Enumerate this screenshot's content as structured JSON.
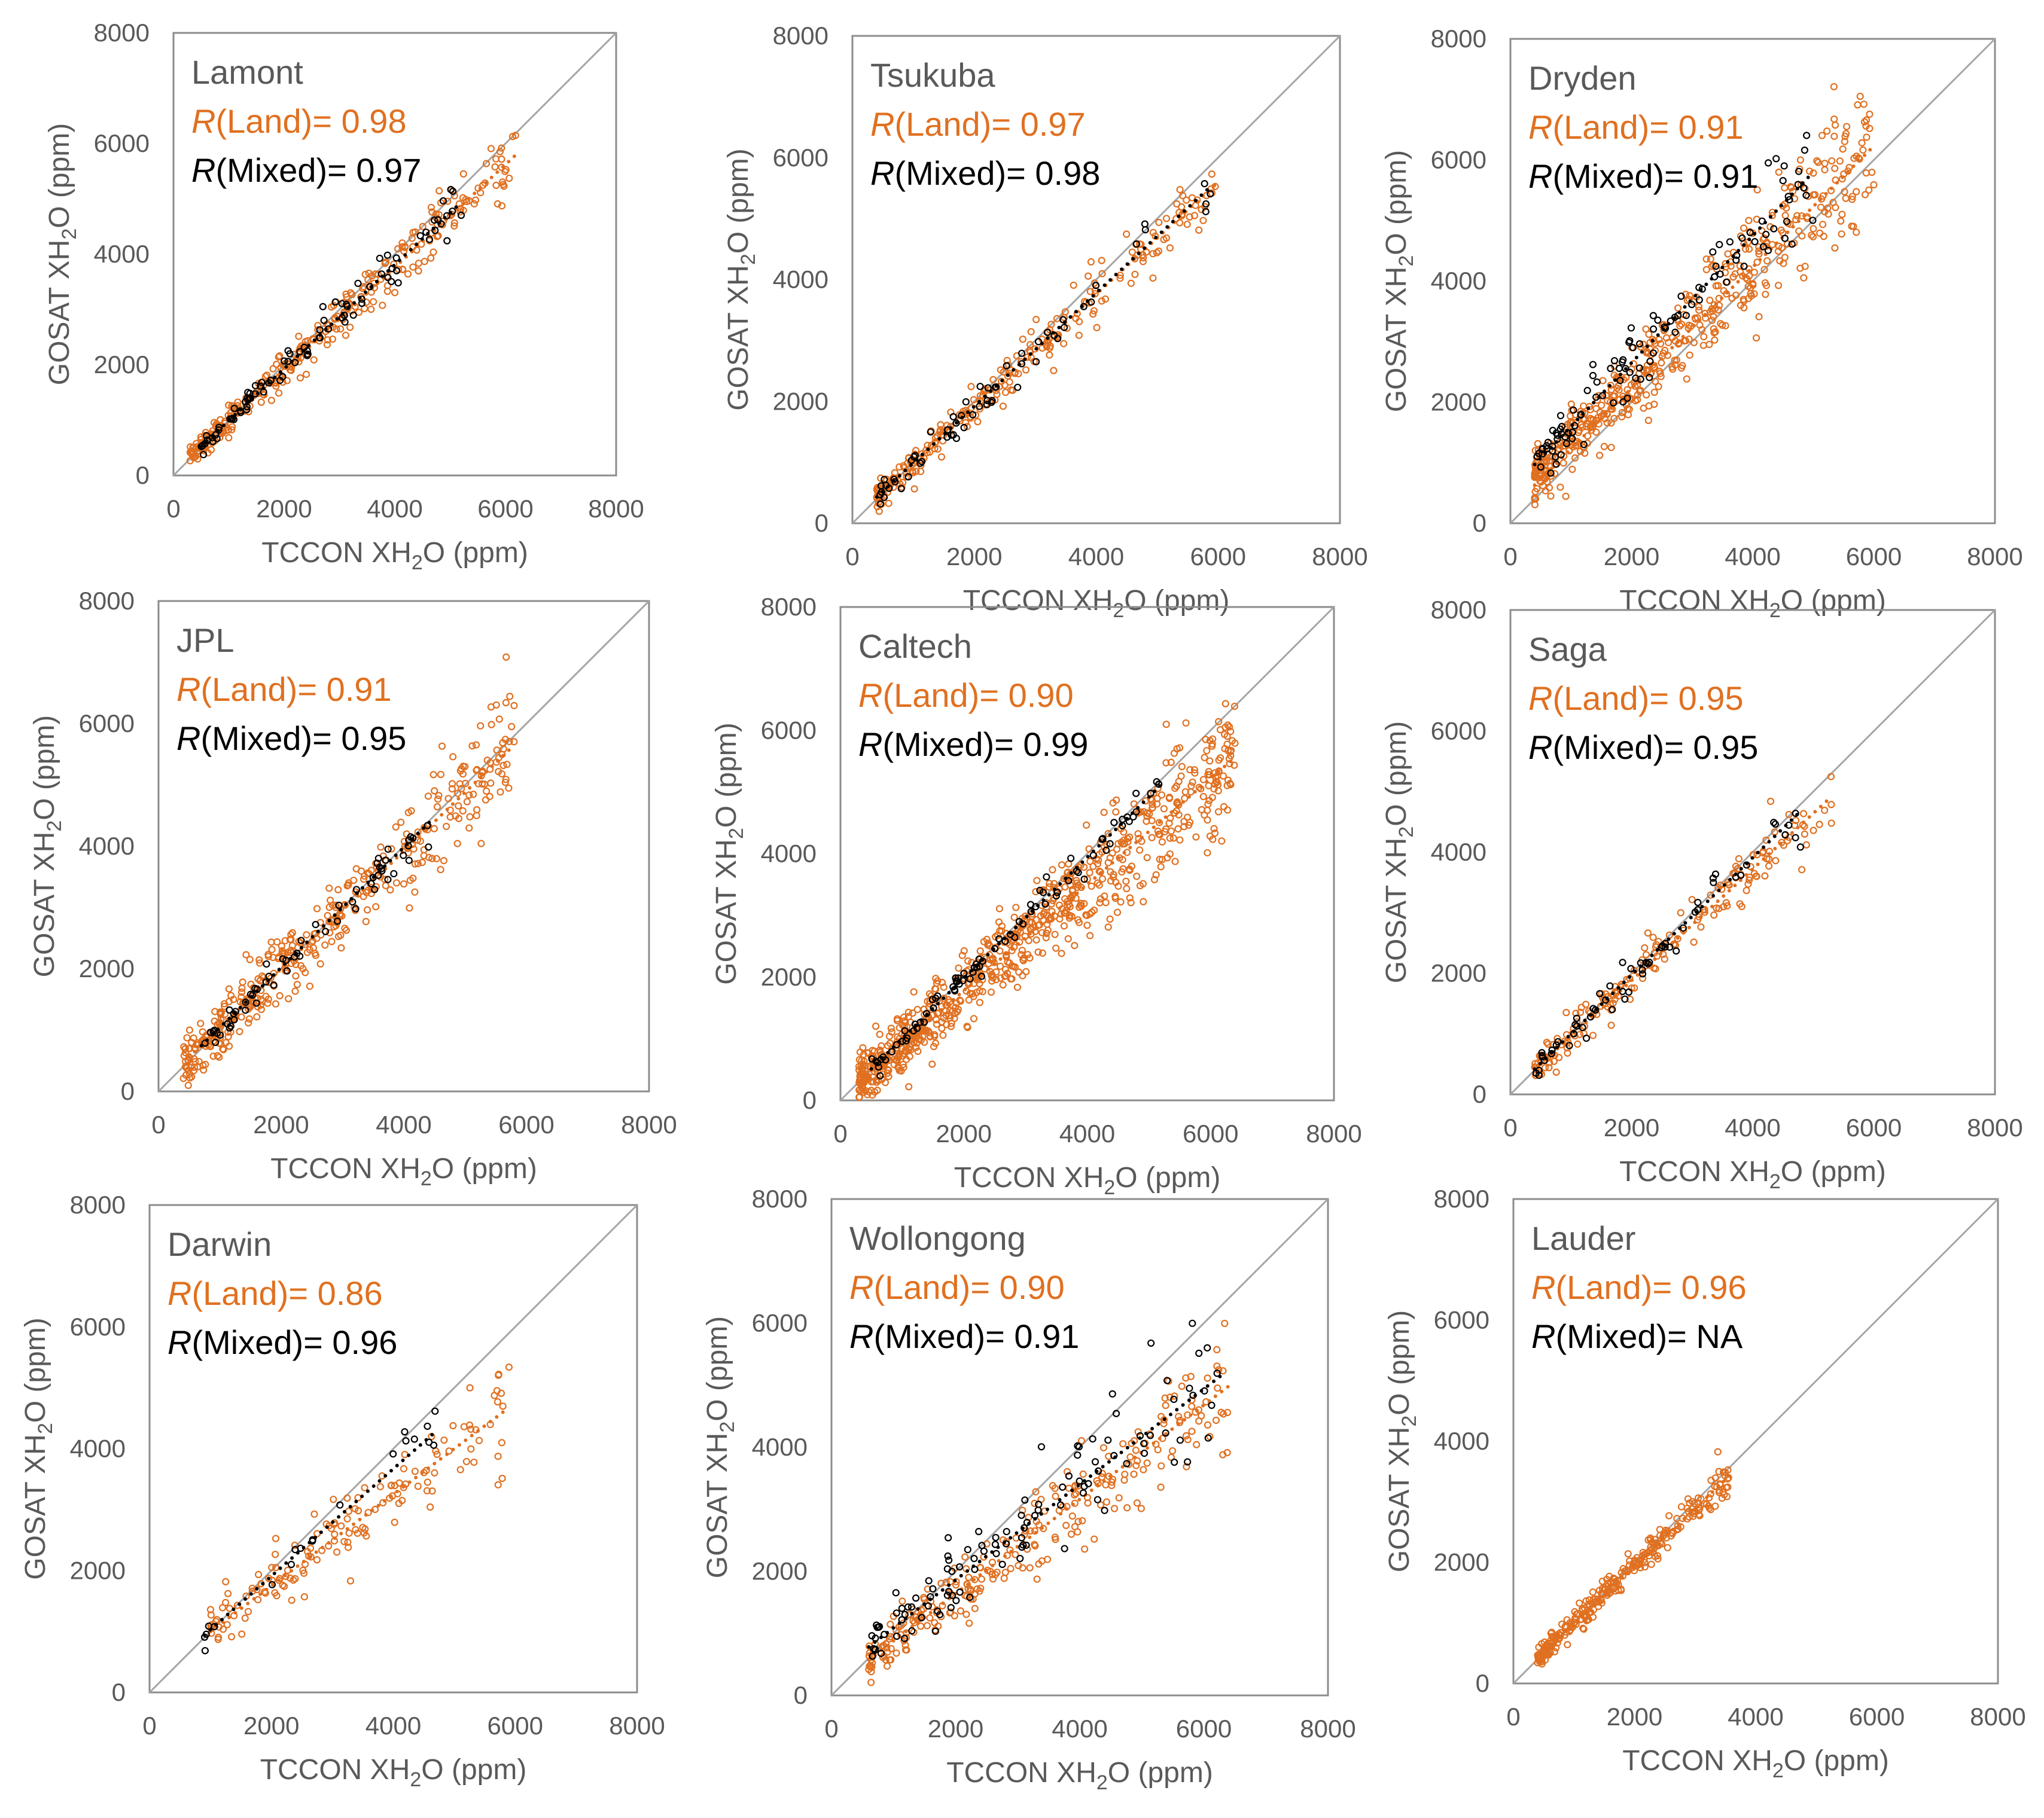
{
  "figure": {
    "colors": {
      "land": "#E07020",
      "mixed": "#000000",
      "axis": "#8C8C8C",
      "one_to_one": "#A6A6A6",
      "text": "#595959"
    },
    "legend_terms": {
      "r_symbol": "R",
      "land": "(Land)= ",
      "mixed": "(Mixed)= "
    }
  },
  "chart_data": [
    {
      "type": "scatter",
      "site": "Lamont",
      "xlabel": "TCCON XH2O (ppm)",
      "ylabel": "GOSAT XH2O (ppm)",
      "xlim": [
        0,
        8000
      ],
      "ylim": [
        0,
        8000
      ],
      "xticks": [
        "0",
        "2000",
        "4000",
        "6000",
        "8000"
      ],
      "yticks": [
        "0",
        "2000",
        "4000",
        "6000",
        "8000"
      ],
      "r_land": "0.98",
      "r_mixed": "0.97",
      "series": [
        {
          "name": "Land",
          "x_range": [
            300,
            6200
          ],
          "slope": 0.93,
          "intercept": 60,
          "scatter": 200,
          "n": 300,
          "fit": {
            "x0": 500,
            "x1": 6200,
            "slope": 0.93,
            "intercept": 40
          }
        },
        {
          "name": "Mixed",
          "x_range": [
            500,
            5200
          ],
          "slope": 0.94,
          "intercept": 60,
          "scatter": 160,
          "n": 90,
          "fit": {
            "x0": 500,
            "x1": 5200,
            "slope": 0.94,
            "intercept": 50
          }
        }
      ]
    },
    {
      "type": "scatter",
      "site": "Tsukuba",
      "xlabel": "TCCON XH2O (ppm)",
      "ylabel": "GOSAT XH2O (ppm)",
      "xlim": [
        0,
        8000
      ],
      "ylim": [
        0,
        8000
      ],
      "xticks": [
        "0",
        "2000",
        "4000",
        "6000",
        "8000"
      ],
      "yticks": [
        "0",
        "2000",
        "4000",
        "6000",
        "8000"
      ],
      "r_land": "0.97",
      "r_mixed": "0.98",
      "series": [
        {
          "name": "Land",
          "x_range": [
            400,
            6000
          ],
          "slope": 0.92,
          "intercept": 80,
          "scatter": 220,
          "n": 260,
          "fit": {
            "x0": 400,
            "x1": 6000,
            "slope": 0.92,
            "intercept": 80
          }
        },
        {
          "name": "Mixed",
          "x_range": [
            400,
            5900
          ],
          "slope": 0.93,
          "intercept": 60,
          "scatter": 180,
          "n": 60,
          "fit": {
            "x0": 400,
            "x1": 5900,
            "slope": 0.93,
            "intercept": 60
          }
        }
      ]
    },
    {
      "type": "scatter",
      "site": "Dryden",
      "xlabel": "TCCON XH2O (ppm)",
      "ylabel": "GOSAT XH2O (ppm)",
      "xlim": [
        0,
        8000
      ],
      "ylim": [
        0,
        8000
      ],
      "xticks": [
        "0",
        "2000",
        "4000",
        "6000",
        "8000"
      ],
      "yticks": [
        "0",
        "2000",
        "4000",
        "6000",
        "8000"
      ],
      "r_land": "0.91",
      "r_mixed": "0.91",
      "series": [
        {
          "name": "Land",
          "x_range": [
            400,
            6000
          ],
          "slope": 0.98,
          "intercept": 350,
          "scatter": 380,
          "n": 520,
          "fit": {
            "x0": 400,
            "x1": 6000,
            "slope": 1.0,
            "intercept": 230
          }
        },
        {
          "name": "Mixed",
          "x_range": [
            400,
            5000
          ],
          "slope": 1.05,
          "intercept": 550,
          "scatter": 380,
          "n": 110,
          "fit": {
            "x0": 400,
            "x1": 5000,
            "slope": 1.05,
            "intercept": 550
          }
        }
      ]
    },
    {
      "type": "scatter",
      "site": "JPL",
      "xlabel": "TCCON XH2O (ppm)",
      "ylabel": "GOSAT XH2O (ppm)",
      "xlim": [
        0,
        8000
      ],
      "ylim": [
        0,
        8000
      ],
      "xticks": [
        "0",
        "2000",
        "4000",
        "6000",
        "8000"
      ],
      "yticks": [
        "0",
        "2000",
        "4000",
        "6000",
        "8000"
      ],
      "r_land": "0.91",
      "r_mixed": "0.95",
      "series": [
        {
          "name": "Land",
          "x_range": [
            400,
            5800
          ],
          "slope": 0.96,
          "intercept": 80,
          "scatter": 330,
          "n": 400,
          "fit": {
            "x0": 500,
            "x1": 5800,
            "slope": 0.96,
            "intercept": 80
          }
        },
        {
          "name": "Mixed",
          "x_range": [
            700,
            4500
          ],
          "slope": 0.98,
          "intercept": 60,
          "scatter": 150,
          "n": 60,
          "fit": {
            "x0": 700,
            "x1": 4500,
            "slope": 0.98,
            "intercept": 60
          }
        }
      ]
    },
    {
      "type": "scatter",
      "site": "Caltech",
      "xlabel": "TCCON XH2O (ppm)",
      "ylabel": "GOSAT XH2O (ppm)",
      "xlim": [
        0,
        8000
      ],
      "ylim": [
        0,
        8000
      ],
      "xticks": [
        "0",
        "2000",
        "4000",
        "6000",
        "8000"
      ],
      "yticks": [
        "0",
        "2000",
        "4000",
        "6000",
        "8000"
      ],
      "r_land": "0.90",
      "r_mixed": "0.99",
      "series": [
        {
          "name": "Land",
          "x_range": [
            300,
            6400
          ],
          "slope": 0.86,
          "intercept": 60,
          "scatter": 360,
          "n": 750,
          "fit": {
            "x0": 300,
            "x1": 6400,
            "slope": 0.86,
            "intercept": 60
          }
        },
        {
          "name": "Mixed",
          "x_range": [
            500,
            5200
          ],
          "slope": 0.98,
          "intercept": 20,
          "scatter": 110,
          "n": 80,
          "fit": {
            "x0": 500,
            "x1": 5200,
            "slope": 0.98,
            "intercept": 20
          }
        }
      ]
    },
    {
      "type": "scatter",
      "site": "Saga",
      "xlabel": "TCCON XH2O (ppm)",
      "ylabel": "GOSAT XH2O (ppm)",
      "xlim": [
        0,
        8000
      ],
      "ylim": [
        0,
        8000
      ],
      "xticks": [
        "0",
        "2000",
        "4000",
        "6000",
        "8000"
      ],
      "yticks": [
        "0",
        "2000",
        "4000",
        "6000",
        "8000"
      ],
      "r_land": "0.95",
      "r_mixed": "0.95",
      "series": [
        {
          "name": "Land",
          "x_range": [
            400,
            5300
          ],
          "slope": 0.92,
          "intercept": 50,
          "scatter": 220,
          "n": 180,
          "fit": {
            "x0": 400,
            "x1": 5300,
            "slope": 0.92,
            "intercept": 40
          }
        },
        {
          "name": "Mixed",
          "x_range": [
            400,
            4800
          ],
          "slope": 0.97,
          "intercept": 40,
          "scatter": 220,
          "n": 60,
          "fit": {
            "x0": 400,
            "x1": 4800,
            "slope": 0.97,
            "intercept": 30
          }
        }
      ]
    },
    {
      "type": "scatter",
      "site": "Darwin",
      "xlabel": "TCCON XH2O (ppm)",
      "ylabel": "GOSAT XH2O (ppm)",
      "xlim": [
        0,
        8000
      ],
      "ylim": [
        0,
        8000
      ],
      "xticks": [
        "0",
        "2000",
        "4000",
        "6000",
        "8000"
      ],
      "yticks": [
        "0",
        "2000",
        "4000",
        "6000",
        "8000"
      ],
      "r_land": "0.86",
      "r_mixed": "0.96",
      "series": [
        {
          "name": "Land",
          "x_range": [
            1000,
            5900
          ],
          "slope": 0.75,
          "intercept": 250,
          "scatter": 320,
          "n": 150,
          "fit": {
            "x0": 1000,
            "x1": 5900,
            "slope": 0.75,
            "intercept": 250
          }
        },
        {
          "name": "Mixed",
          "x_range": [
            900,
            4700
          ],
          "slope": 0.88,
          "intercept": 150,
          "scatter": 160,
          "n": 20,
          "fit": {
            "x0": 900,
            "x1": 4700,
            "slope": 0.88,
            "intercept": 150
          }
        }
      ]
    },
    {
      "type": "scatter",
      "site": "Wollongong",
      "xlabel": "TCCON XH2O (ppm)",
      "ylabel": "GOSAT XH2O (ppm)",
      "xlim": [
        0,
        8000
      ],
      "ylim": [
        0,
        8000
      ],
      "xticks": [
        "0",
        "2000",
        "4000",
        "6000",
        "8000"
      ],
      "yticks": [
        "0",
        "2000",
        "4000",
        "6000",
        "8000"
      ],
      "r_land": "0.90",
      "r_mixed": "0.91",
      "series": [
        {
          "name": "Land",
          "x_range": [
            600,
            6400
          ],
          "slope": 0.76,
          "intercept": 120,
          "scatter": 320,
          "n": 260,
          "fit": {
            "x0": 600,
            "x1": 6400,
            "slope": 0.76,
            "intercept": 120
          }
        },
        {
          "name": "Mixed",
          "x_range": [
            600,
            6300
          ],
          "slope": 0.77,
          "intercept": 320,
          "scatter": 350,
          "n": 110,
          "fit": {
            "x0": 600,
            "x1": 6300,
            "slope": 0.77,
            "intercept": 320
          }
        }
      ]
    },
    {
      "type": "scatter",
      "site": "Lauder",
      "xlabel": "TCCON XH2O (ppm)",
      "ylabel": "GOSAT XH2O (ppm)",
      "xlim": [
        0,
        8000
      ],
      "ylim": [
        0,
        8000
      ],
      "xticks": [
        "0",
        "2000",
        "4000",
        "6000",
        "8000"
      ],
      "yticks": [
        "0",
        "2000",
        "4000",
        "6000",
        "8000"
      ],
      "r_land": "0.96",
      "r_mixed": "NA",
      "series": [
        {
          "name": "Land",
          "x_range": [
            400,
            3600
          ],
          "slope": 0.95,
          "intercept": 40,
          "scatter": 150,
          "n": 280,
          "fit": {
            "x0": 400,
            "x1": 3600,
            "slope": 0.95,
            "intercept": 40
          }
        }
      ]
    }
  ]
}
